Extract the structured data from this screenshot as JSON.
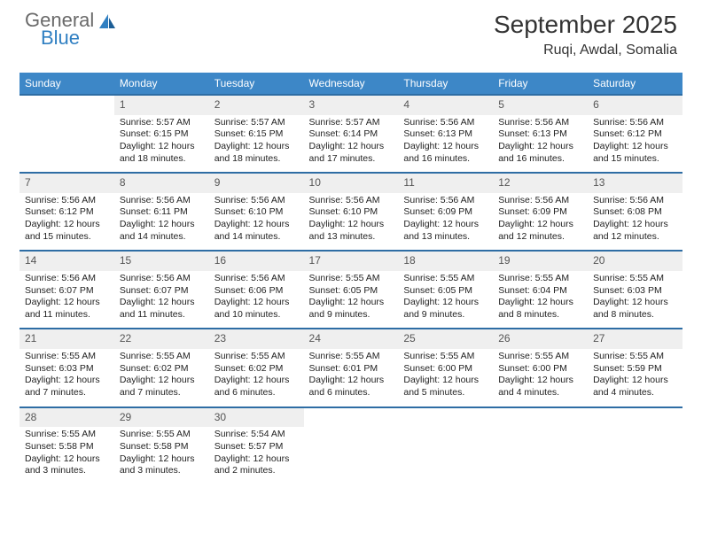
{
  "logo": {
    "text1": "General",
    "text2": "Blue"
  },
  "title": "September 2025",
  "location": "Ruqi, Awdal, Somalia",
  "colors": {
    "header_bg": "#3d87c7",
    "header_text": "#ffffff",
    "daynum_bg": "#efefef",
    "row_border": "#2e6da4",
    "body_text": "#222222",
    "logo_gray": "#6a6a6a",
    "logo_blue": "#2f7fc2"
  },
  "weekdays": [
    "Sunday",
    "Monday",
    "Tuesday",
    "Wednesday",
    "Thursday",
    "Friday",
    "Saturday"
  ],
  "weeks": [
    {
      "nums": [
        "",
        "1",
        "2",
        "3",
        "4",
        "5",
        "6"
      ],
      "cells": [
        null,
        {
          "sunrise": "Sunrise: 5:57 AM",
          "sunset": "Sunset: 6:15 PM",
          "day1": "Daylight: 12 hours",
          "day2": "and 18 minutes."
        },
        {
          "sunrise": "Sunrise: 5:57 AM",
          "sunset": "Sunset: 6:15 PM",
          "day1": "Daylight: 12 hours",
          "day2": "and 18 minutes."
        },
        {
          "sunrise": "Sunrise: 5:57 AM",
          "sunset": "Sunset: 6:14 PM",
          "day1": "Daylight: 12 hours",
          "day2": "and 17 minutes."
        },
        {
          "sunrise": "Sunrise: 5:56 AM",
          "sunset": "Sunset: 6:13 PM",
          "day1": "Daylight: 12 hours",
          "day2": "and 16 minutes."
        },
        {
          "sunrise": "Sunrise: 5:56 AM",
          "sunset": "Sunset: 6:13 PM",
          "day1": "Daylight: 12 hours",
          "day2": "and 16 minutes."
        },
        {
          "sunrise": "Sunrise: 5:56 AM",
          "sunset": "Sunset: 6:12 PM",
          "day1": "Daylight: 12 hours",
          "day2": "and 15 minutes."
        }
      ]
    },
    {
      "nums": [
        "7",
        "8",
        "9",
        "10",
        "11",
        "12",
        "13"
      ],
      "cells": [
        {
          "sunrise": "Sunrise: 5:56 AM",
          "sunset": "Sunset: 6:12 PM",
          "day1": "Daylight: 12 hours",
          "day2": "and 15 minutes."
        },
        {
          "sunrise": "Sunrise: 5:56 AM",
          "sunset": "Sunset: 6:11 PM",
          "day1": "Daylight: 12 hours",
          "day2": "and 14 minutes."
        },
        {
          "sunrise": "Sunrise: 5:56 AM",
          "sunset": "Sunset: 6:10 PM",
          "day1": "Daylight: 12 hours",
          "day2": "and 14 minutes."
        },
        {
          "sunrise": "Sunrise: 5:56 AM",
          "sunset": "Sunset: 6:10 PM",
          "day1": "Daylight: 12 hours",
          "day2": "and 13 minutes."
        },
        {
          "sunrise": "Sunrise: 5:56 AM",
          "sunset": "Sunset: 6:09 PM",
          "day1": "Daylight: 12 hours",
          "day2": "and 13 minutes."
        },
        {
          "sunrise": "Sunrise: 5:56 AM",
          "sunset": "Sunset: 6:09 PM",
          "day1": "Daylight: 12 hours",
          "day2": "and 12 minutes."
        },
        {
          "sunrise": "Sunrise: 5:56 AM",
          "sunset": "Sunset: 6:08 PM",
          "day1": "Daylight: 12 hours",
          "day2": "and 12 minutes."
        }
      ]
    },
    {
      "nums": [
        "14",
        "15",
        "16",
        "17",
        "18",
        "19",
        "20"
      ],
      "cells": [
        {
          "sunrise": "Sunrise: 5:56 AM",
          "sunset": "Sunset: 6:07 PM",
          "day1": "Daylight: 12 hours",
          "day2": "and 11 minutes."
        },
        {
          "sunrise": "Sunrise: 5:56 AM",
          "sunset": "Sunset: 6:07 PM",
          "day1": "Daylight: 12 hours",
          "day2": "and 11 minutes."
        },
        {
          "sunrise": "Sunrise: 5:56 AM",
          "sunset": "Sunset: 6:06 PM",
          "day1": "Daylight: 12 hours",
          "day2": "and 10 minutes."
        },
        {
          "sunrise": "Sunrise: 5:55 AM",
          "sunset": "Sunset: 6:05 PM",
          "day1": "Daylight: 12 hours",
          "day2": "and 9 minutes."
        },
        {
          "sunrise": "Sunrise: 5:55 AM",
          "sunset": "Sunset: 6:05 PM",
          "day1": "Daylight: 12 hours",
          "day2": "and 9 minutes."
        },
        {
          "sunrise": "Sunrise: 5:55 AM",
          "sunset": "Sunset: 6:04 PM",
          "day1": "Daylight: 12 hours",
          "day2": "and 8 minutes."
        },
        {
          "sunrise": "Sunrise: 5:55 AM",
          "sunset": "Sunset: 6:03 PM",
          "day1": "Daylight: 12 hours",
          "day2": "and 8 minutes."
        }
      ]
    },
    {
      "nums": [
        "21",
        "22",
        "23",
        "24",
        "25",
        "26",
        "27"
      ],
      "cells": [
        {
          "sunrise": "Sunrise: 5:55 AM",
          "sunset": "Sunset: 6:03 PM",
          "day1": "Daylight: 12 hours",
          "day2": "and 7 minutes."
        },
        {
          "sunrise": "Sunrise: 5:55 AM",
          "sunset": "Sunset: 6:02 PM",
          "day1": "Daylight: 12 hours",
          "day2": "and 7 minutes."
        },
        {
          "sunrise": "Sunrise: 5:55 AM",
          "sunset": "Sunset: 6:02 PM",
          "day1": "Daylight: 12 hours",
          "day2": "and 6 minutes."
        },
        {
          "sunrise": "Sunrise: 5:55 AM",
          "sunset": "Sunset: 6:01 PM",
          "day1": "Daylight: 12 hours",
          "day2": "and 6 minutes."
        },
        {
          "sunrise": "Sunrise: 5:55 AM",
          "sunset": "Sunset: 6:00 PM",
          "day1": "Daylight: 12 hours",
          "day2": "and 5 minutes."
        },
        {
          "sunrise": "Sunrise: 5:55 AM",
          "sunset": "Sunset: 6:00 PM",
          "day1": "Daylight: 12 hours",
          "day2": "and 4 minutes."
        },
        {
          "sunrise": "Sunrise: 5:55 AM",
          "sunset": "Sunset: 5:59 PM",
          "day1": "Daylight: 12 hours",
          "day2": "and 4 minutes."
        }
      ]
    },
    {
      "nums": [
        "28",
        "29",
        "30",
        "",
        "",
        "",
        ""
      ],
      "cells": [
        {
          "sunrise": "Sunrise: 5:55 AM",
          "sunset": "Sunset: 5:58 PM",
          "day1": "Daylight: 12 hours",
          "day2": "and 3 minutes."
        },
        {
          "sunrise": "Sunrise: 5:55 AM",
          "sunset": "Sunset: 5:58 PM",
          "day1": "Daylight: 12 hours",
          "day2": "and 3 minutes."
        },
        {
          "sunrise": "Sunrise: 5:54 AM",
          "sunset": "Sunset: 5:57 PM",
          "day1": "Daylight: 12 hours",
          "day2": "and 2 minutes."
        },
        null,
        null,
        null,
        null
      ]
    }
  ]
}
